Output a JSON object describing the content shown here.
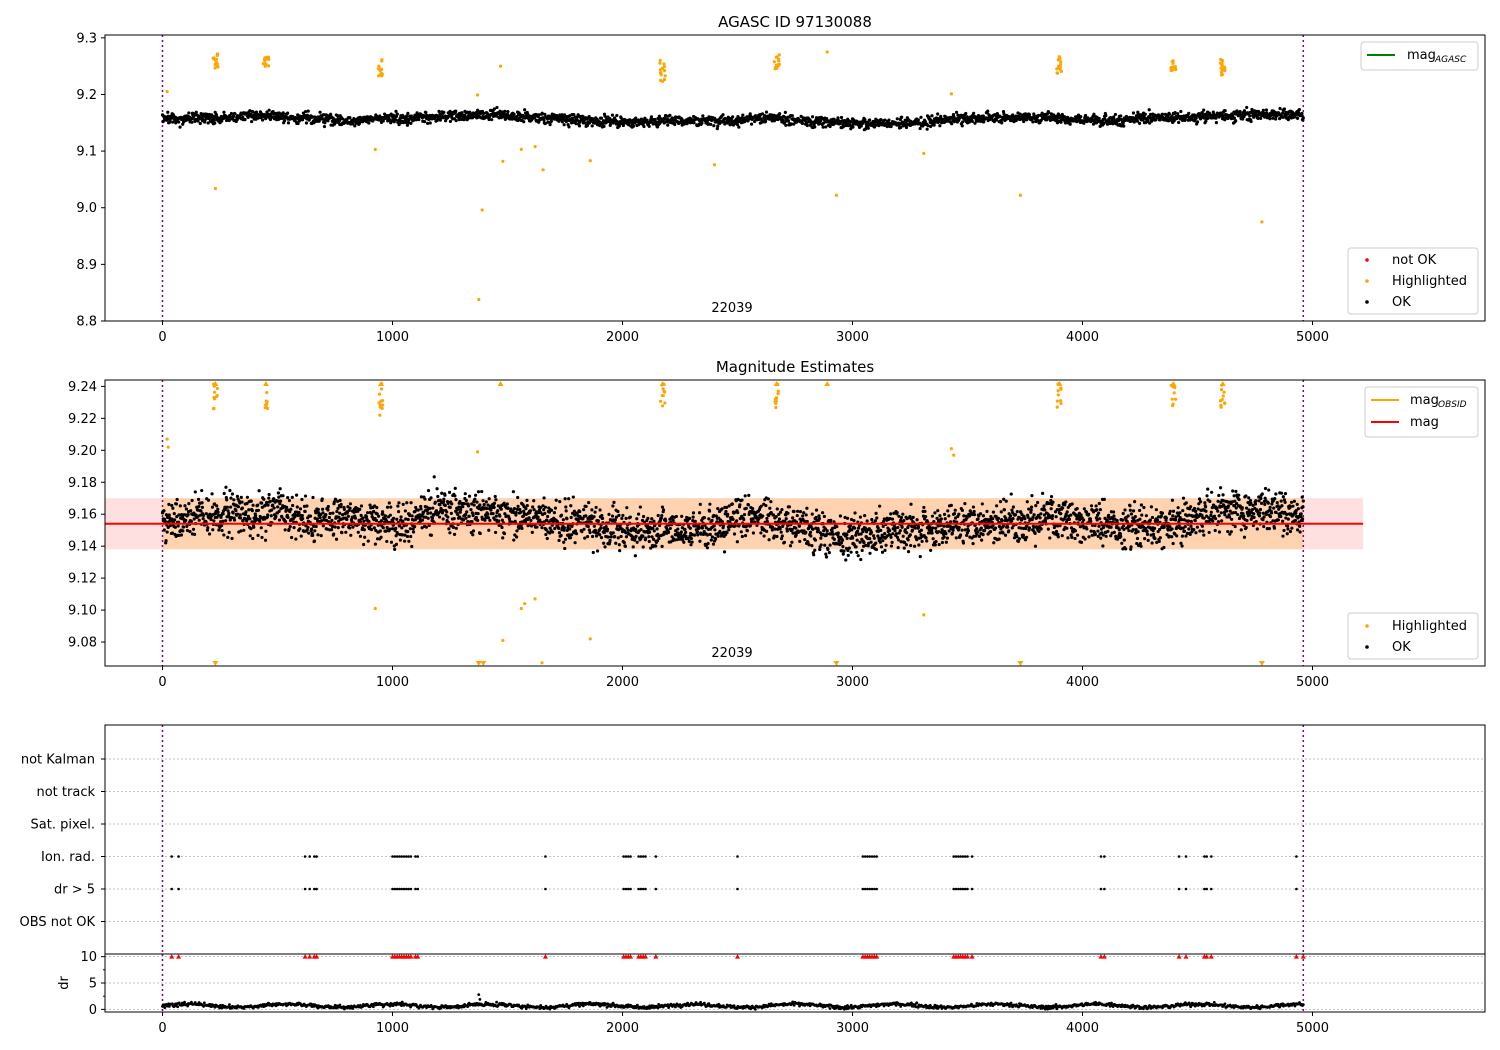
{
  "chart_data": [
    {
      "type": "scatter",
      "title": "AGASC ID 97130088",
      "obsid_label": "22039",
      "xlim": [
        -250,
        5750
      ],
      "ylim": [
        8.8,
        9.305
      ],
      "x_ticks": [
        0,
        1000,
        2000,
        3000,
        4000,
        5000
      ],
      "y_ticks": [
        8.8,
        8.9,
        9.0,
        9.1,
        9.2,
        9.3
      ],
      "y_tick_labels": [
        "8.8",
        "8.9",
        "9.0",
        "9.1",
        "9.2",
        "9.3"
      ],
      "obs_boundaries": [
        0,
        4960
      ],
      "ok_band": {
        "x_range": [
          0,
          4960
        ],
        "base": 9.157,
        "amplitude": 0.045
      },
      "highlighted_points": [
        [
          20,
          9.205
        ],
        [
          230,
          9.034
        ],
        [
          1375,
          8.838
        ],
        [
          1390,
          8.996
        ],
        [
          925,
          9.103
        ],
        [
          1470,
          9.25
        ],
        [
          1480,
          9.082
        ],
        [
          1560,
          9.103
        ],
        [
          1655,
          9.067
        ],
        [
          1860,
          9.083
        ],
        [
          2400,
          9.076
        ],
        [
          2890,
          9.275
        ],
        [
          2930,
          9.022
        ],
        [
          3310,
          9.096
        ],
        [
          3430,
          9.201
        ],
        [
          3730,
          9.022
        ],
        [
          4780,
          8.975
        ],
        [
          1370,
          9.199
        ],
        [
          1620,
          9.108
        ]
      ],
      "highlighted_clusters": [
        {
          "x": 230,
          "y_range": [
            9.245,
            9.272
          ]
        },
        {
          "x": 450,
          "y_range": [
            9.245,
            9.266
          ]
        },
        {
          "x": 950,
          "y_range": [
            9.232,
            9.262
          ]
        },
        {
          "x": 2175,
          "y_range": [
            9.222,
            9.262
          ]
        },
        {
          "x": 2670,
          "y_range": [
            9.245,
            9.27
          ]
        },
        {
          "x": 3900,
          "y_range": [
            9.228,
            9.268
          ]
        },
        {
          "x": 4395,
          "y_range": [
            9.242,
            9.26
          ]
        },
        {
          "x": 4610,
          "y_range": [
            9.232,
            9.262
          ]
        }
      ],
      "legend_lines": {
        "entries": [
          {
            "name_main": "mag",
            "name_sub": "AGASC",
            "color": "#008000"
          }
        ],
        "placement": "upper right"
      },
      "legend_points": {
        "entries": [
          {
            "name": "not OK",
            "color": "#ff0000"
          },
          {
            "name": "Highlighted",
            "color": "#ffa500"
          },
          {
            "name": "OK",
            "color": "#000000"
          }
        ],
        "placement": "lower right"
      }
    },
    {
      "type": "scatter",
      "title": "Magnitude Estimates",
      "obsid_label": "22039",
      "xlim": [
        -250,
        5750
      ],
      "ylim": [
        9.065,
        9.244
      ],
      "x_ticks": [
        0,
        1000,
        2000,
        3000,
        4000,
        5000
      ],
      "y_ticks": [
        9.08,
        9.1,
        9.12,
        9.14,
        9.16,
        9.18,
        9.2,
        9.22,
        9.24
      ],
      "y_tick_labels": [
        "9.08",
        "9.10",
        "9.12",
        "9.14",
        "9.16",
        "9.18",
        "9.20",
        "9.22",
        "9.24"
      ],
      "obs_boundaries": [
        0,
        4960
      ],
      "mag_line": {
        "value": 9.154,
        "x_range": [
          -250,
          5220
        ],
        "color": "#ff0000"
      },
      "mag_band": {
        "range": [
          9.138,
          9.17
        ],
        "x_range": [
          -250,
          5220
        ],
        "color": "#ffd6d6"
      },
      "obsid_band": {
        "range": [
          9.138,
          9.17
        ],
        "x_range": [
          0,
          4960
        ],
        "color": "#ffa500"
      },
      "ok_band": {
        "x_range": [
          0,
          4960
        ],
        "base": 9.155,
        "amplitude": 0.06
      },
      "highlighted_points": [
        [
          20,
          9.207
        ],
        [
          25,
          9.202
        ],
        [
          925,
          9.101
        ],
        [
          945,
          9.222
        ],
        [
          1370,
          9.199
        ],
        [
          1480,
          9.081
        ],
        [
          1560,
          9.101
        ],
        [
          1575,
          9.104
        ],
        [
          1620,
          9.107
        ],
        [
          1860,
          9.082
        ],
        [
          3310,
          9.097
        ],
        [
          3430,
          9.201
        ],
        [
          3440,
          9.197
        ],
        [
          3890,
          9.227
        ],
        [
          4600,
          9.231
        ],
        [
          4390,
          9.232
        ]
      ],
      "clipped_high": [
        230,
        450,
        950,
        1470,
        2175,
        2670,
        2890,
        3900,
        4395,
        4610
      ],
      "clipped_low": [
        230,
        1375,
        1395,
        2930,
        3730,
        4780
      ],
      "low_points": [
        [
          1650,
          9.067
        ]
      ],
      "legend_lines": {
        "entries": [
          {
            "name_main": "mag",
            "name_sub": "OBSID",
            "color": "#ffa500"
          },
          {
            "name_main": "mag",
            "name_sub": "",
            "color": "#ff0000"
          }
        ],
        "placement": "upper right"
      },
      "legend_points": {
        "entries": [
          {
            "name": "Highlighted",
            "color": "#ffa500"
          },
          {
            "name": "OK",
            "color": "#000000"
          }
        ],
        "placement": "lower right"
      }
    },
    {
      "type": "scatter",
      "xlim": [
        -250,
        5750
      ],
      "categories": [
        "not Kalman",
        "not track",
        "Sat. pixel.",
        "Ion. rad.",
        "dr > 5",
        "OBS not OK"
      ],
      "obs_boundaries": [
        0,
        4960
      ],
      "flag_x": [
        40,
        70,
        620,
        640,
        660,
        670,
        1000,
        1010,
        1020,
        1030,
        1040,
        1050,
        1060,
        1070,
        1080,
        1100,
        1110,
        1665,
        2005,
        2015,
        2025,
        2035,
        2070,
        2080,
        2090,
        2100,
        2145,
        2500,
        3045,
        3055,
        3065,
        3075,
        3085,
        3095,
        3105,
        3440,
        3450,
        3460,
        3470,
        3480,
        3490,
        3500,
        3520,
        4080,
        4095,
        4420,
        4450,
        4530,
        4540,
        4560,
        4930
      ],
      "flag_rows": [
        "Ion. rad.",
        "dr > 5"
      ]
    },
    {
      "type": "scatter",
      "ylabel": "dr",
      "xlim": [
        -250,
        5750
      ],
      "ylim": [
        -0.5,
        10.5
      ],
      "x_ticks": [
        0,
        1000,
        2000,
        3000,
        4000,
        5000
      ],
      "y_ticks": [
        0,
        5,
        10
      ],
      "y_tick_labels": [
        "0",
        "5",
        "10"
      ],
      "obs_boundaries": [
        0,
        4960
      ],
      "dr_baseline": {
        "x_range": [
          0,
          4960
        ],
        "mean": 0.7,
        "spread": 0.6
      },
      "dr_outliers": [
        [
          1375,
          2.8
        ],
        [
          1380,
          1.9
        ]
      ],
      "dr_clipped_value": 10,
      "dr_clipped_x": [
        40,
        70,
        620,
        640,
        660,
        670,
        1000,
        1010,
        1020,
        1030,
        1040,
        1050,
        1060,
        1070,
        1080,
        1100,
        1110,
        1665,
        2005,
        2015,
        2025,
        2035,
        2070,
        2080,
        2090,
        2100,
        2145,
        2500,
        3045,
        3055,
        3065,
        3075,
        3085,
        3095,
        3105,
        3440,
        3450,
        3460,
        3470,
        3480,
        3490,
        3500,
        3520,
        4080,
        4095,
        4420,
        4450,
        4530,
        4540,
        4560,
        4930,
        4960
      ]
    }
  ]
}
